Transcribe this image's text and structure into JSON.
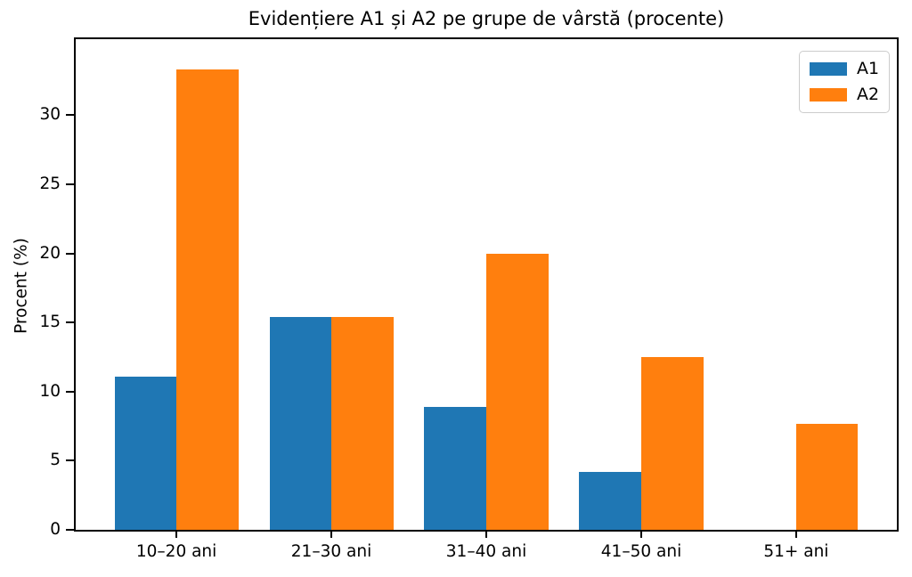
{
  "chart_data": {
    "type": "bar",
    "title": "Evidențiere A1 și A2 pe grupe de vârstă (procente)",
    "xlabel": "",
    "ylabel": "Procent (%)",
    "categories": [
      "10–20 ani",
      "21–30 ani",
      "31–40 ani",
      "41–50 ani",
      "51+ ani"
    ],
    "series": [
      {
        "name": "A1",
        "color": "#1f77b4",
        "values": [
          11.1,
          15.4,
          8.9,
          4.2,
          0
        ]
      },
      {
        "name": "A2",
        "color": "#ff7f0e",
        "values": [
          33.3,
          15.4,
          20.0,
          12.5,
          7.7
        ]
      }
    ],
    "yticks": [
      0,
      5,
      10,
      15,
      20,
      25,
      30
    ],
    "ylim": [
      0,
      35.5
    ],
    "bar_width": 0.4,
    "grid": false,
    "legend": {
      "position": "upper right",
      "entries": [
        "A1",
        "A2"
      ]
    },
    "colors": {
      "background": "#ffffff",
      "axis": "#000000",
      "legend_border": "#cccccc"
    }
  }
}
